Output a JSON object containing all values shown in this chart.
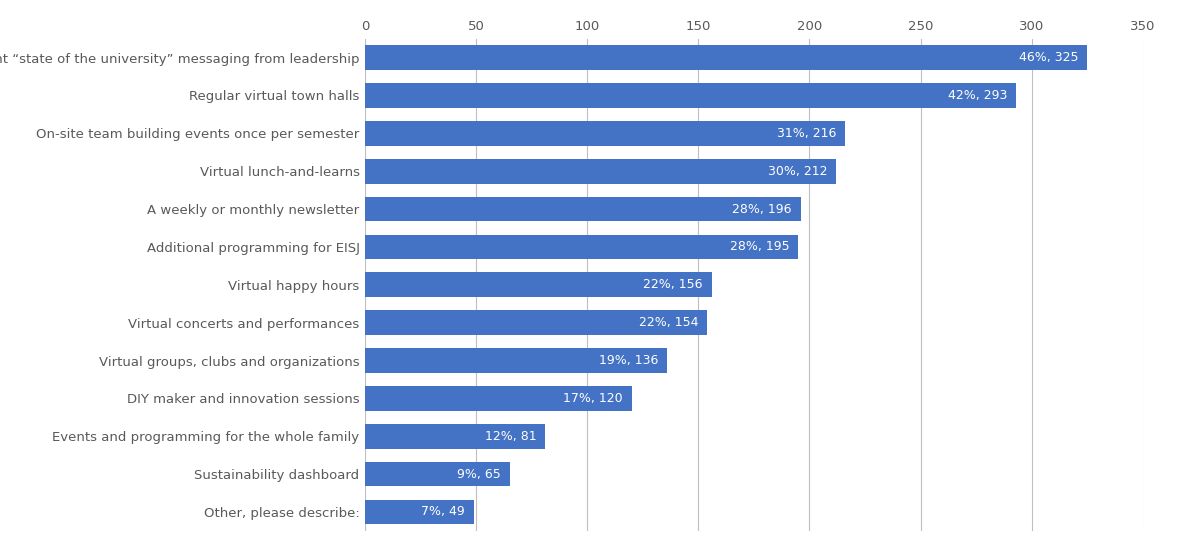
{
  "categories": [
    "Other, please describe:",
    "Sustainability dashboard",
    "Events and programming for the whole family",
    "DIY maker and innovation sessions",
    "Virtual groups, clubs and organizations",
    "Virtual concerts and performances",
    "Virtual happy hours",
    "Additional programming for EISJ",
    "A weekly or monthly newsletter",
    "Virtual lunch-and-learns",
    "On-site team building events once per semester",
    "Regular virtual town halls",
    "Frequent “state of the university” messaging from leadership"
  ],
  "values": [
    49,
    65,
    81,
    120,
    136,
    154,
    156,
    195,
    196,
    212,
    216,
    293,
    325
  ],
  "labels": [
    "7%, 49",
    "9%, 65",
    "12%, 81",
    "17%, 120",
    "19%, 136",
    "22%, 154",
    "22%, 156",
    "28%, 195",
    "28%, 196",
    "30%, 212",
    "31%, 216",
    "42%, 293",
    "46%, 325"
  ],
  "bar_color": "#4472C4",
  "label_color": "#ffffff",
  "background_color": "#ffffff",
  "grid_color": "#bfbfbf",
  "tick_label_color": "#595959",
  "xlim": [
    0,
    350
  ],
  "xticks": [
    0,
    50,
    100,
    150,
    200,
    250,
    300,
    350
  ],
  "bar_height": 0.65,
  "label_fontsize": 9.0,
  "tick_fontsize": 9.5,
  "figsize": [
    11.78,
    5.53
  ],
  "dpi": 100
}
